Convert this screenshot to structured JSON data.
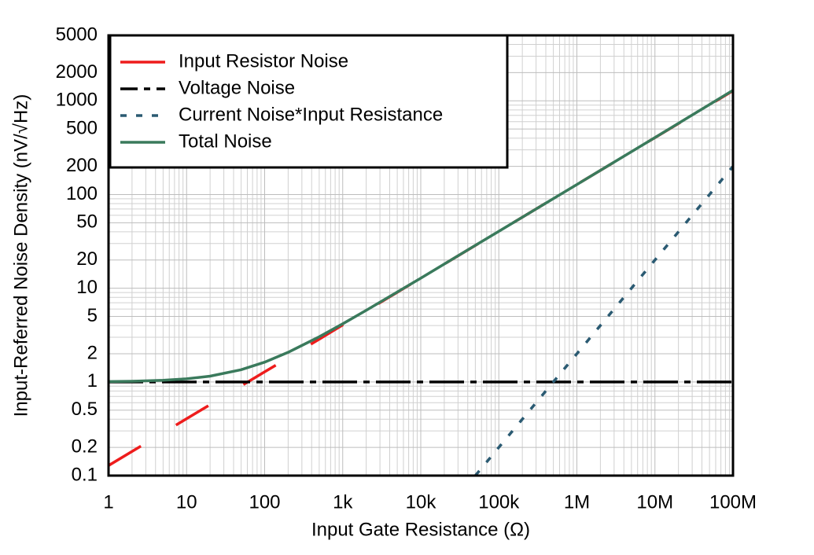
{
  "chart_data": {
    "type": "line",
    "x_label": "Input Gate Resistance (Ω)",
    "y_label": "Input-Referred Noise Density (nV/√Hz)",
    "x": [
      1,
      2,
      5,
      10,
      20,
      50,
      100,
      200,
      500,
      1000,
      2000,
      5000,
      10000,
      50000,
      100000,
      1000000,
      10000000,
      100000000
    ],
    "series": [
      {
        "name": "Input Resistor Noise",
        "color": "#ee1c1c",
        "dash": "long",
        "values": [
          0.128,
          0.181,
          0.286,
          0.405,
          0.572,
          0.905,
          1.28,
          1.81,
          2.86,
          4.05,
          5.72,
          9.05,
          12.8,
          28.6,
          40.5,
          128,
          405,
          1280
        ]
      },
      {
        "name": "Voltage Noise",
        "color": "#000000",
        "dash": "dashdot",
        "values": [
          1,
          1,
          1,
          1,
          1,
          1,
          1,
          1,
          1,
          1,
          1,
          1,
          1,
          1,
          1,
          1,
          1,
          1
        ]
      },
      {
        "name": "Current Noise*Input Resistance",
        "color": "#2a5a72",
        "dash": "short",
        "values": [
          null,
          null,
          null,
          null,
          null,
          null,
          null,
          null,
          null,
          null,
          null,
          null,
          null,
          0.1,
          0.2,
          2,
          20,
          200
        ]
      },
      {
        "name": "Total Noise",
        "color": "#3a7a5c",
        "dash": "solid",
        "values": [
          1.008,
          1.016,
          1.04,
          1.079,
          1.152,
          1.349,
          1.625,
          2.07,
          3.03,
          4.17,
          5.81,
          9.11,
          12.8,
          28.7,
          40.5,
          128,
          405.5,
          1296
        ]
      }
    ],
    "xscale": "log",
    "yscale": "log",
    "xlim": [
      1,
      100000000
    ],
    "ylim": [
      0.1,
      5000
    ],
    "xticks": [
      1,
      10,
      100,
      {
        "value": 1000,
        "label": "1k"
      },
      {
        "value": 10000,
        "label": "10k"
      },
      {
        "value": 100000,
        "label": "100k"
      },
      {
        "value": 1000000,
        "label": "1M"
      },
      {
        "value": 10000000,
        "label": "10M"
      },
      {
        "value": 100000000,
        "label": "100M"
      }
    ],
    "yticks": [
      0.1,
      0.2,
      0.5,
      1,
      2,
      5,
      10,
      20,
      50,
      100,
      200,
      500,
      1000,
      2000,
      5000
    ],
    "grid": true,
    "minor_grid": true,
    "legend": "upper left"
  }
}
